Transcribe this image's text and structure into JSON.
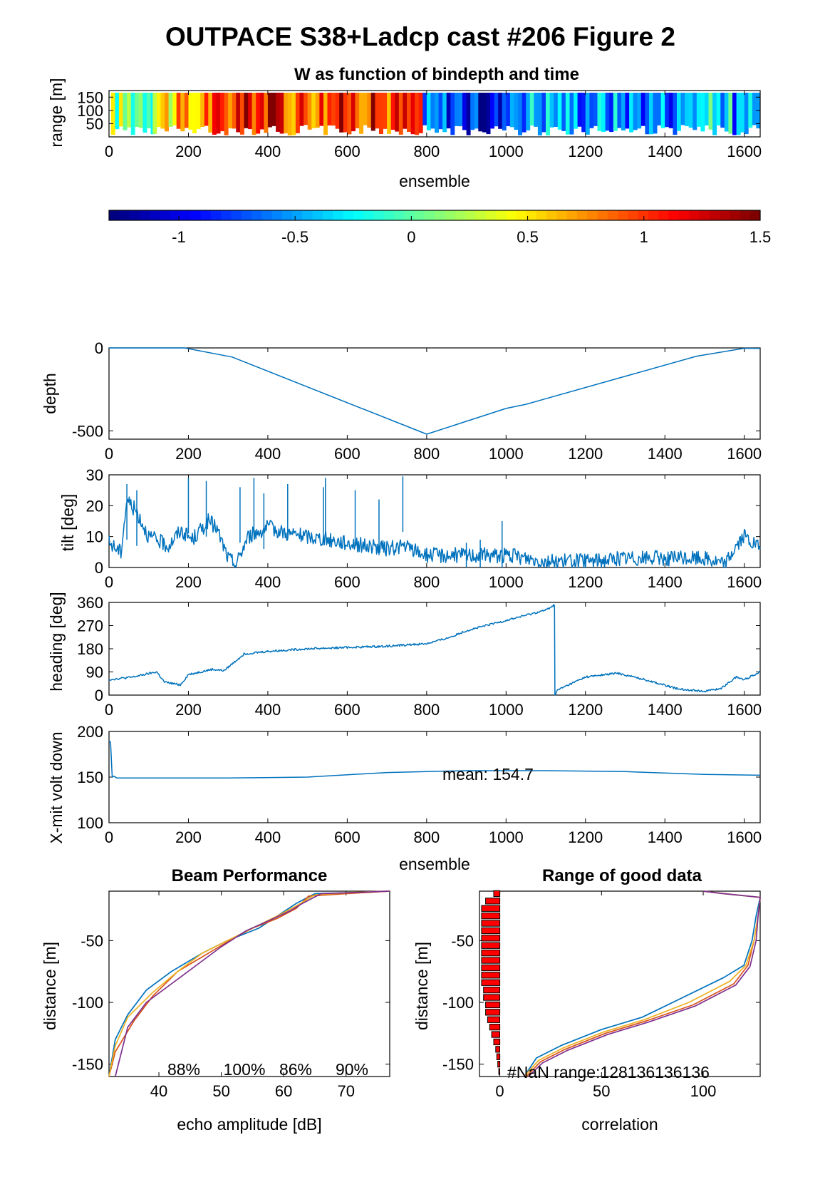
{
  "figure": {
    "title": "OUTPACE S38+Ladcp cast #206 Figure 2"
  },
  "colorbar": {
    "ticks": [
      "-1",
      "-0.5",
      "0",
      "0.5",
      "1",
      "1.5"
    ],
    "range": [
      -1.3,
      1.5
    ]
  },
  "chart_data": [
    {
      "id": "w_heatmap",
      "type": "heatmap",
      "title": "W as function of bindepth and time",
      "xlabel": "ensemble",
      "ylabel": "range [m]",
      "xlim": [
        0,
        1640
      ],
      "ylim": [
        175,
        0
      ],
      "xticks": [
        "0",
        "200",
        "400",
        "600",
        "800",
        "1000",
        "1200",
        "1400",
        "1600"
      ],
      "yticks": [
        "50",
        "100",
        "150"
      ],
      "colormap": "jet",
      "segments": [
        {
          "x": [
            5,
            110
          ],
          "w": 0.15
        },
        {
          "x": [
            110,
            230
          ],
          "w": 0.55
        },
        {
          "x": [
            230,
            310
          ],
          "w": 0.9
        },
        {
          "x": [
            310,
            440
          ],
          "w": 1.2
        },
        {
          "x": [
            440,
            560
          ],
          "w": 1.0
        },
        {
          "x": [
            560,
            680
          ],
          "w": 1.1
        },
        {
          "x": [
            680,
            790
          ],
          "w": 1.0
        },
        {
          "x": [
            790,
            900
          ],
          "w": -0.7
        },
        {
          "x": [
            900,
            1000
          ],
          "w": -1.0
        },
        {
          "x": [
            1000,
            1150
          ],
          "w": -0.4
        },
        {
          "x": [
            1150,
            1300
          ],
          "w": -0.5
        },
        {
          "x": [
            1300,
            1450
          ],
          "w": -0.55
        },
        {
          "x": [
            1450,
            1570
          ],
          "w": -0.3
        },
        {
          "x": [
            1570,
            1640
          ],
          "w": -0.6
        }
      ]
    },
    {
      "id": "depth",
      "type": "line",
      "ylabel": "depth",
      "xlim": [
        0,
        1640
      ],
      "ylim": [
        -550,
        0
      ],
      "xticks": [
        "0",
        "200",
        "400",
        "600",
        "800",
        "1000",
        "1200",
        "1400",
        "1600"
      ],
      "yticks": [
        "-500",
        "0"
      ],
      "x": [
        0,
        190,
        310,
        800,
        1000,
        1050,
        1480,
        1600,
        1640
      ],
      "y": [
        0,
        0,
        -55,
        -520,
        -365,
        -340,
        -50,
        -2,
        -3
      ],
      "color": "#0072BD"
    },
    {
      "id": "tilt",
      "type": "line",
      "ylabel": "tilt [deg]",
      "xlim": [
        0,
        1640
      ],
      "ylim": [
        0,
        30
      ],
      "xticks": [
        "0",
        "200",
        "400",
        "600",
        "800",
        "1000",
        "1200",
        "1400",
        "1600"
      ],
      "yticks": [
        "0",
        "10",
        "20",
        "30"
      ],
      "x": [
        0,
        30,
        45,
        70,
        100,
        150,
        180,
        210,
        250,
        270,
        300,
        320,
        350,
        400,
        450,
        500,
        550,
        600,
        650,
        700,
        740,
        760,
        800,
        900,
        1000,
        1050,
        1100,
        1200,
        1300,
        1400,
        1500,
        1550,
        1580,
        1600,
        1640
      ],
      "y": [
        8,
        5,
        22,
        18,
        10,
        7,
        12,
        9,
        15,
        13,
        3,
        1,
        10,
        13,
        11,
        10,
        9,
        8,
        7,
        6,
        7,
        6,
        4,
        4,
        4,
        3,
        2,
        2,
        3,
        3,
        3,
        1,
        7,
        10,
        6
      ],
      "spikes": [
        [
          45,
          27
        ],
        [
          70,
          25
        ],
        [
          200,
          29
        ],
        [
          245,
          28
        ],
        [
          330,
          26
        ],
        [
          365,
          29
        ],
        [
          390,
          24
        ],
        [
          450,
          27
        ],
        [
          540,
          26
        ],
        [
          545,
          29
        ],
        [
          620,
          25
        ],
        [
          680,
          22
        ],
        [
          740,
          29.5
        ],
        [
          990,
          15
        ],
        [
          935,
          9
        ],
        [
          900,
          8
        ]
      ],
      "color": "#0072BD"
    },
    {
      "id": "heading",
      "type": "line",
      "ylabel": "heading [deg]",
      "xlim": [
        0,
        1640
      ],
      "ylim": [
        0,
        360
      ],
      "xticks": [
        "0",
        "200",
        "400",
        "600",
        "800",
        "1000",
        "1200",
        "1400",
        "1600"
      ],
      "yticks": [
        "0",
        "90",
        "180",
        "270",
        "360"
      ],
      "x": [
        0,
        60,
        120,
        140,
        180,
        200,
        260,
        290,
        340,
        400,
        500,
        600,
        700,
        800,
        850,
        900,
        950,
        1000,
        1050,
        1100,
        1122,
        1123,
        1130,
        1200,
        1280,
        1350,
        1430,
        1500,
        1540,
        1580,
        1600,
        1640
      ],
      "y": [
        60,
        70,
        90,
        50,
        40,
        80,
        100,
        95,
        160,
        170,
        180,
        185,
        190,
        200,
        220,
        250,
        270,
        290,
        310,
        330,
        350,
        0,
        20,
        70,
        85,
        60,
        25,
        15,
        25,
        70,
        60,
        90
      ],
      "color": "#0072BD"
    },
    {
      "id": "xmit",
      "type": "line",
      "ylabel": "X-mit volt down",
      "xlabel": "ensemble",
      "xlim": [
        0,
        1640
      ],
      "ylim": [
        100,
        200
      ],
      "xticks": [
        "0",
        "200",
        "400",
        "600",
        "800",
        "1000",
        "1200",
        "1400",
        "1600"
      ],
      "yticks": [
        "100",
        "150",
        "200"
      ],
      "x": [
        0,
        4,
        8,
        12,
        20,
        100,
        300,
        500,
        700,
        900,
        1100,
        1300,
        1500,
        1640
      ],
      "y": [
        190,
        188,
        150,
        151,
        149,
        149,
        149,
        150,
        155,
        157,
        157,
        156,
        153,
        152
      ],
      "annotation": "mean: 154.7",
      "color": "#0072BD"
    },
    {
      "id": "beam_performance",
      "type": "line",
      "title": "Beam Performance",
      "xlabel": "echo amplitude [dB]",
      "ylabel": "distance [m]",
      "xlim": [
        32,
        77
      ],
      "ylim": [
        -160,
        -10
      ],
      "xticks": [
        "40",
        "50",
        "60",
        "70"
      ],
      "yticks": [
        "-150",
        "-100",
        "-50"
      ],
      "beam_percent": [
        "88%",
        "100%",
        "86%",
        "90%"
      ],
      "series": [
        {
          "color": "#0072BD",
          "x": [
            32,
            33,
            35,
            38,
            42,
            47,
            51,
            56,
            59,
            62,
            65,
            72,
            77
          ],
          "y": [
            -160,
            -130,
            -110,
            -90,
            -75,
            -60,
            -50,
            -40,
            -30,
            -20,
            -12,
            -11,
            -10
          ]
        },
        {
          "color": "#D95319",
          "x": [
            32,
            33,
            36,
            39,
            43,
            48,
            52,
            55,
            59,
            62,
            64,
            70,
            77
          ],
          "y": [
            -160,
            -140,
            -115,
            -95,
            -75,
            -60,
            -48,
            -40,
            -32,
            -24,
            -14,
            -12,
            -10
          ]
        },
        {
          "color": "#EDB120",
          "x": [
            32,
            33,
            35,
            39,
            43,
            47,
            51,
            55,
            59,
            62,
            65,
            71,
            77
          ],
          "y": [
            -160,
            -135,
            -112,
            -92,
            -75,
            -60,
            -50,
            -40,
            -30,
            -22,
            -13,
            -11,
            -10
          ]
        },
        {
          "color": "#7E2F8E",
          "x": [
            33,
            35,
            38,
            42,
            46,
            50,
            54,
            58,
            61,
            63,
            66,
            72,
            77
          ],
          "y": [
            -160,
            -120,
            -100,
            -85,
            -70,
            -55,
            -42,
            -33,
            -26,
            -20,
            -12,
            -11,
            -10
          ]
        }
      ]
    },
    {
      "id": "range_good_data",
      "type": "line",
      "title": "Range of good data",
      "xlabel": "correlation",
      "ylabel": "distance [m]",
      "xlim": [
        -10,
        128
      ],
      "ylim": [
        -160,
        -10
      ],
      "xticks": [
        "0",
        "50",
        "100"
      ],
      "yticks": [
        "-150",
        "-100",
        "-50"
      ],
      "nan_label": "#NaN range:128136136136",
      "nan_bars": [
        {
          "y": -12,
          "v": 3
        },
        {
          "y": -18,
          "v": 7
        },
        {
          "y": -24,
          "v": 9
        },
        {
          "y": -30,
          "v": 9
        },
        {
          "y": -36,
          "v": 9
        },
        {
          "y": -42,
          "v": 9
        },
        {
          "y": -48,
          "v": 9
        },
        {
          "y": -54,
          "v": 9
        },
        {
          "y": -60,
          "v": 9
        },
        {
          "y": -66,
          "v": 9
        },
        {
          "y": -72,
          "v": 9
        },
        {
          "y": -78,
          "v": 9
        },
        {
          "y": -84,
          "v": 9
        },
        {
          "y": -90,
          "v": 8
        },
        {
          "y": -96,
          "v": 8
        },
        {
          "y": -102,
          "v": 7
        },
        {
          "y": -108,
          "v": 7
        },
        {
          "y": -114,
          "v": 6
        },
        {
          "y": -120,
          "v": 5
        },
        {
          "y": -126,
          "v": 4
        },
        {
          "y": -132,
          "v": 3
        },
        {
          "y": -138,
          "v": 2
        },
        {
          "y": -144,
          "v": 1.5
        },
        {
          "y": -150,
          "v": 1
        },
        {
          "y": -156,
          "v": 0.5
        }
      ],
      "series": [
        {
          "color": "#0072BD",
          "x": [
            12,
            18,
            30,
            50,
            70,
            90,
            110,
            120,
            124,
            126,
            128,
            110,
            100
          ],
          "y": [
            -160,
            -145,
            -135,
            -122,
            -112,
            -96,
            -80,
            -70,
            -50,
            -30,
            -15,
            -12,
            -10
          ]
        },
        {
          "color": "#D95319",
          "x": [
            13,
            20,
            32,
            52,
            72,
            95,
            115,
            122,
            125,
            127,
            128,
            110,
            100
          ],
          "y": [
            -160,
            -148,
            -138,
            -125,
            -115,
            -102,
            -85,
            -70,
            -50,
            -30,
            -15,
            -12,
            -10
          ]
        },
        {
          "color": "#EDB120",
          "x": [
            12,
            19,
            31,
            51,
            71,
            93,
            113,
            121,
            125,
            127,
            128,
            110,
            100
          ],
          "y": [
            -160,
            -147,
            -137,
            -124,
            -114,
            -100,
            -83,
            -70,
            -50,
            -30,
            -15,
            -12,
            -10
          ]
        },
        {
          "color": "#7E2F8E",
          "x": [
            14,
            21,
            33,
            53,
            73,
            96,
            116,
            123,
            126,
            127,
            128,
            110,
            100
          ],
          "y": [
            -160,
            -149,
            -139,
            -126,
            -116,
            -103,
            -86,
            -71,
            -50,
            -30,
            -15,
            -12,
            -10
          ]
        }
      ]
    }
  ]
}
